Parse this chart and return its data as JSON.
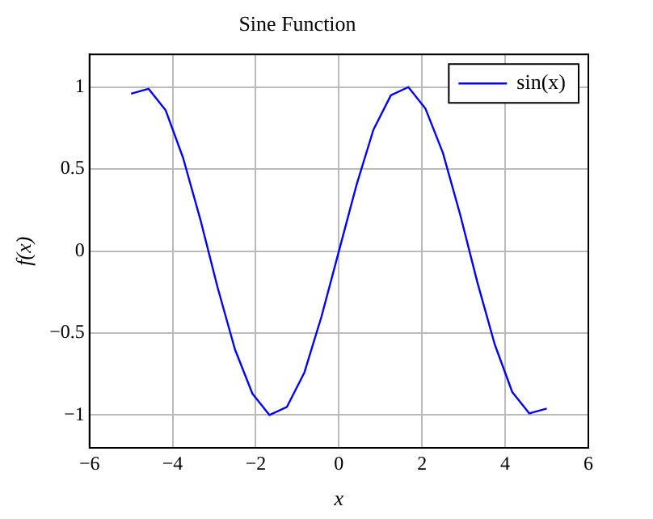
{
  "chart_data": {
    "type": "line",
    "title": "Sine Function",
    "xlabel": "x",
    "ylabel": "f(x)",
    "x": [
      -5,
      -4.58,
      -4.17,
      -3.75,
      -3.33,
      -2.92,
      -2.5,
      -2.08,
      -1.67,
      -1.25,
      -0.83,
      -0.42,
      0,
      0.42,
      0.83,
      1.25,
      1.67,
      2.08,
      2.5,
      2.92,
      3.33,
      3.75,
      4.17,
      4.58,
      5
    ],
    "series": [
      {
        "name": "sin(x)",
        "color": "#0000ff",
        "values": [
          0.96,
          0.99,
          0.86,
          0.57,
          0.19,
          -0.22,
          -0.6,
          -0.87,
          -1,
          -0.95,
          -0.74,
          -0.4,
          0,
          0.4,
          0.74,
          0.95,
          1,
          0.87,
          0.6,
          0.22,
          -0.19,
          -0.57,
          -0.86,
          -0.99,
          -0.96
        ]
      }
    ],
    "xlim": [
      -6,
      6
    ],
    "xticks": [
      {
        "value": -6,
        "label": "−6"
      },
      {
        "value": -4,
        "label": "−4"
      },
      {
        "value": -2,
        "label": "−2"
      },
      0,
      2,
      4,
      6
    ],
    "ylim": [
      -1.2,
      1.2
    ],
    "yticks": [
      {
        "value": -1,
        "label": "−1"
      },
      {
        "value": -0.5,
        "label": "−0.5"
      },
      0,
      0.5,
      1
    ],
    "grid": true,
    "legend": "top right",
    "marker": "none",
    "line_style": "solid"
  }
}
